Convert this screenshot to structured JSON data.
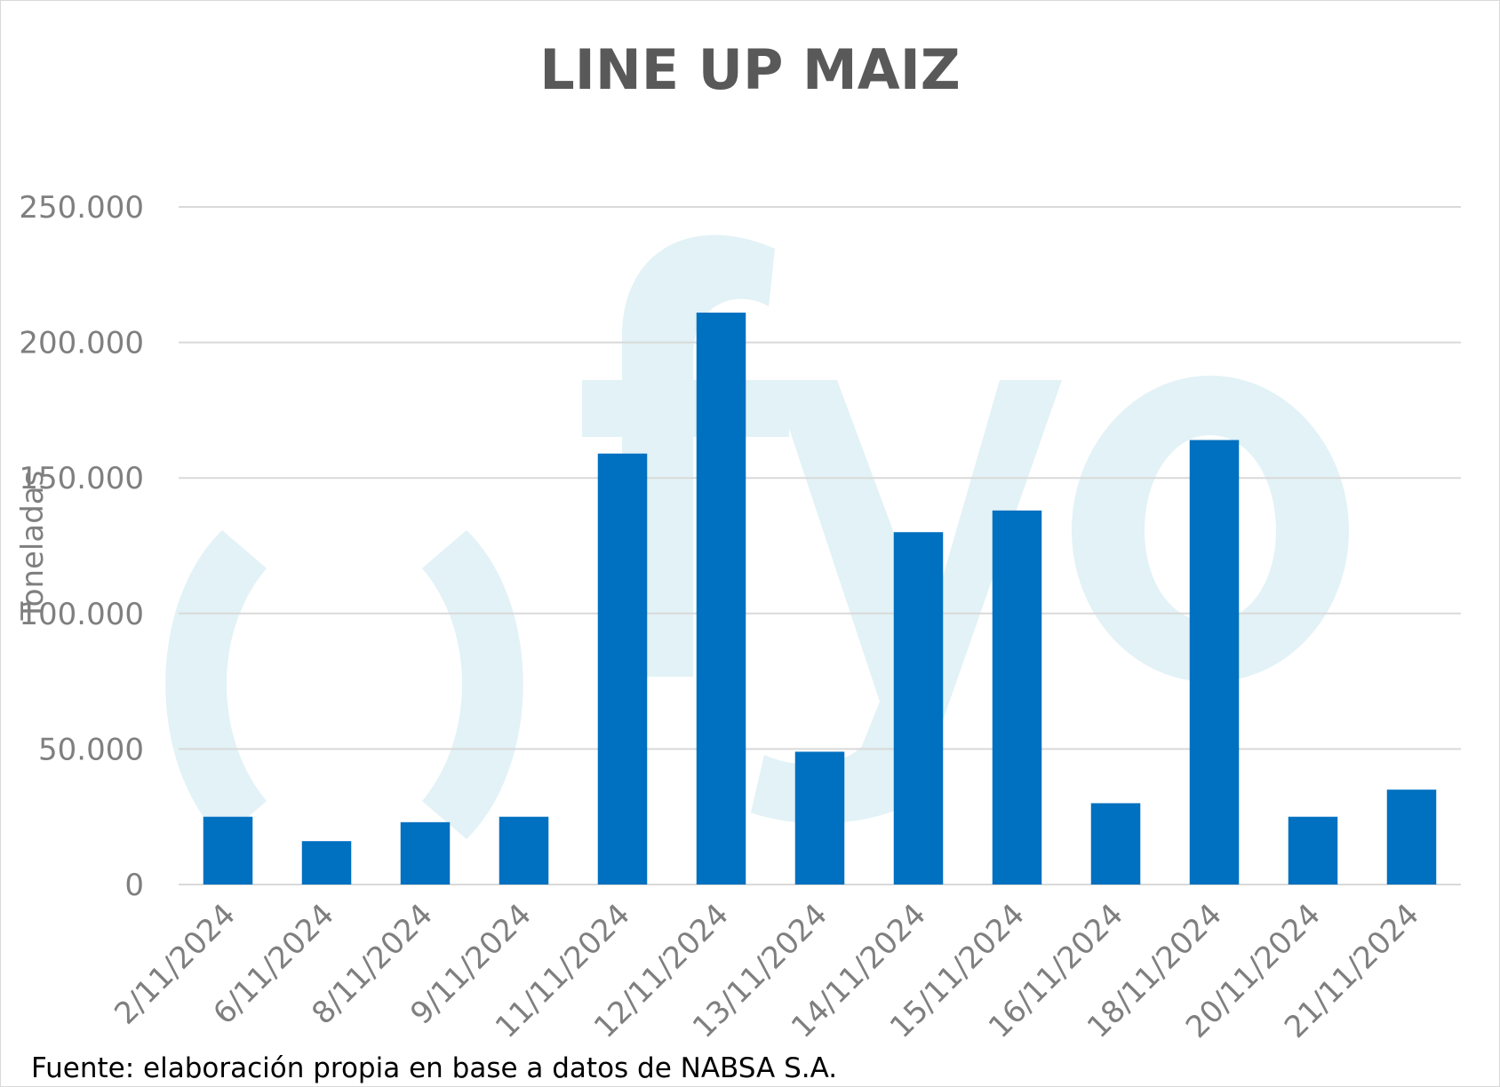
{
  "chart_data": {
    "type": "bar",
    "title": "LINE UP MAIZ",
    "ylabel": "Toneladas",
    "xlabel": "",
    "categories": [
      "2/11/2024",
      "6/11/2024",
      "8/11/2024",
      "9/11/2024",
      "11/11/2024",
      "12/11/2024",
      "13/11/2024",
      "14/11/2024",
      "15/11/2024",
      "16/11/2024",
      "18/11/2024",
      "20/11/2024",
      "21/11/2024"
    ],
    "values": [
      25000,
      16000,
      23000,
      25000,
      159000,
      211000,
      49000,
      130000,
      138000,
      30000,
      164000,
      25000,
      35000
    ],
    "ylim": [
      0,
      250000
    ],
    "yticks": [
      0,
      50000,
      100000,
      150000,
      200000,
      250000
    ],
    "ytick_labels": [
      "0",
      "50.000",
      "100.000",
      "150.000",
      "200.000",
      "250.000"
    ],
    "grid": true,
    "legend": "none",
    "bar_color": "#0070c0",
    "gridline_color": "#d9d9d9",
    "watermark": "fyo-logo"
  },
  "source_note": "Fuente: elaboración propia en base a datos de NABSA S.A."
}
